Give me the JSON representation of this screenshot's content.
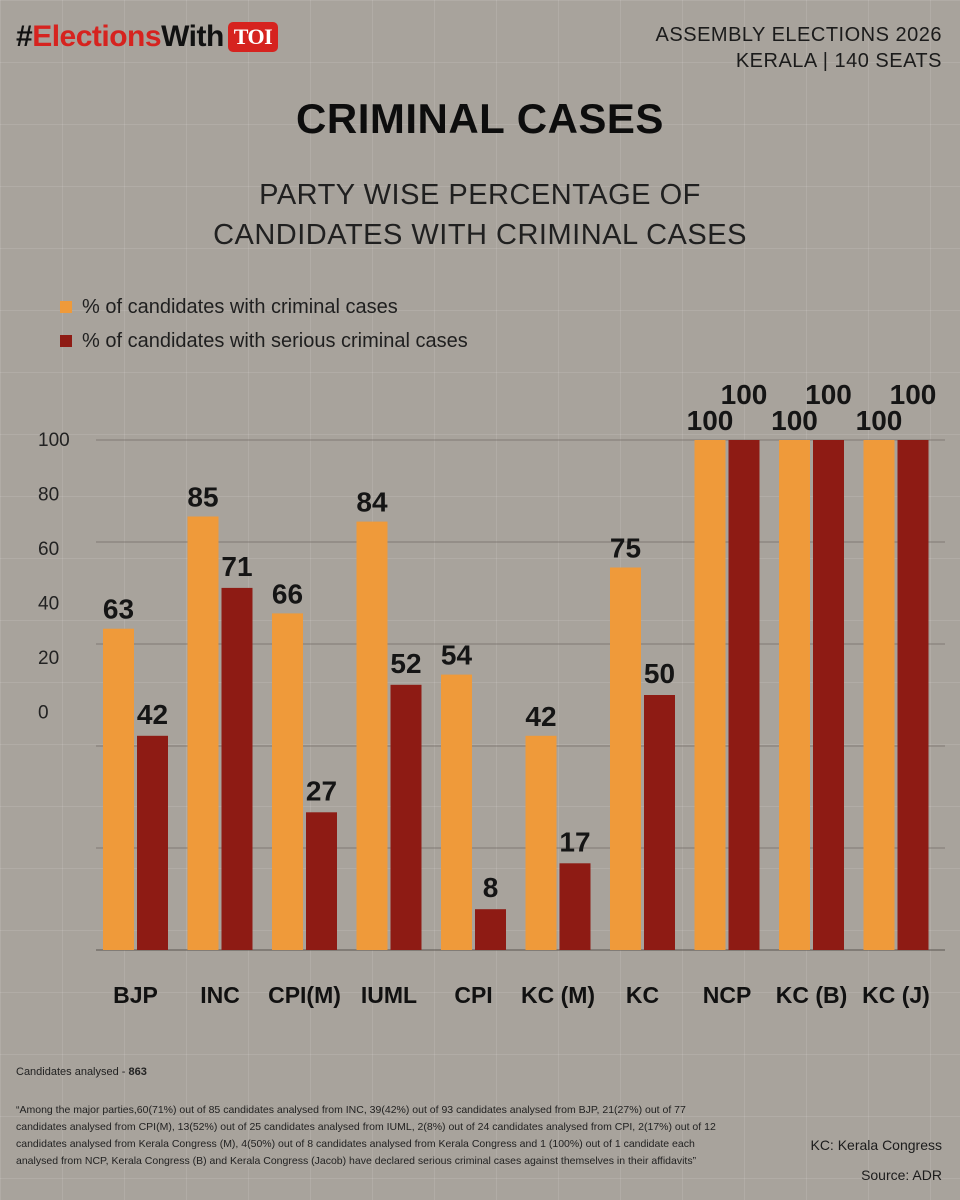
{
  "header": {
    "brand_hash": "#",
    "brand_elections": "Elections",
    "brand_with": "With",
    "brand_badge": "TOI",
    "line1": "ASSEMBLY ELECTIONS 2026",
    "line2": "KERALA | 140 SEATS"
  },
  "title": "CRIMINAL CASES",
  "subtitle_line1": "PARTY WISE PERCENTAGE OF",
  "subtitle_line2": "CANDIDATES WITH CRIMINAL CASES",
  "colors": {
    "criminal": "#ef9a3a",
    "serious": "#8e1b14"
  },
  "chart_data": {
    "type": "bar",
    "categories": [
      "BJP",
      "INC",
      "CPI(M)",
      "IUML",
      "CPI",
      "KC (M)",
      "KC",
      "NCP",
      "KC (B)",
      "KC (J)"
    ],
    "series": [
      {
        "name": "% of candidates with criminal cases",
        "values": [
          63,
          85,
          66,
          84,
          54,
          42,
          75,
          100,
          100,
          100
        ]
      },
      {
        "name": "% of candidates with serious criminal cases",
        "values": [
          42,
          71,
          27,
          52,
          8,
          17,
          50,
          100,
          100,
          100
        ]
      }
    ],
    "y_ticks": [
      "100",
      "80",
      "60",
      "40",
      "20",
      "0"
    ],
    "ylim": [
      0,
      100
    ],
    "legend_position": "top-left",
    "grid": true
  },
  "footer": {
    "count_label": "Candidates analysed - ",
    "count_value": "863",
    "quote": "“Among the major parties,60(71%) out of 85 candidates analysed from INC, 39(42%) out of 93 candidates analysed from BJP, 21(27%) out of 77 candidates analysed from CPI(M), 13(52%) out of 25 candidates analysed from IUML, 2(8%) out of 24 candidates analysed from CPI, 2(17%) out of 12 candidates analysed from Kerala Congress (M), 4(50%) out of 8 candidates analysed from Kerala Congress and 1 (100%) out of 1 candidate each analysed from NCP, Kerala Congress (B) and Kerala Congress (Jacob) have declared serious criminal cases against themselves in their affidavits”",
    "kc_note": "KC: Kerala Congress",
    "source": "Source: ADR"
  }
}
